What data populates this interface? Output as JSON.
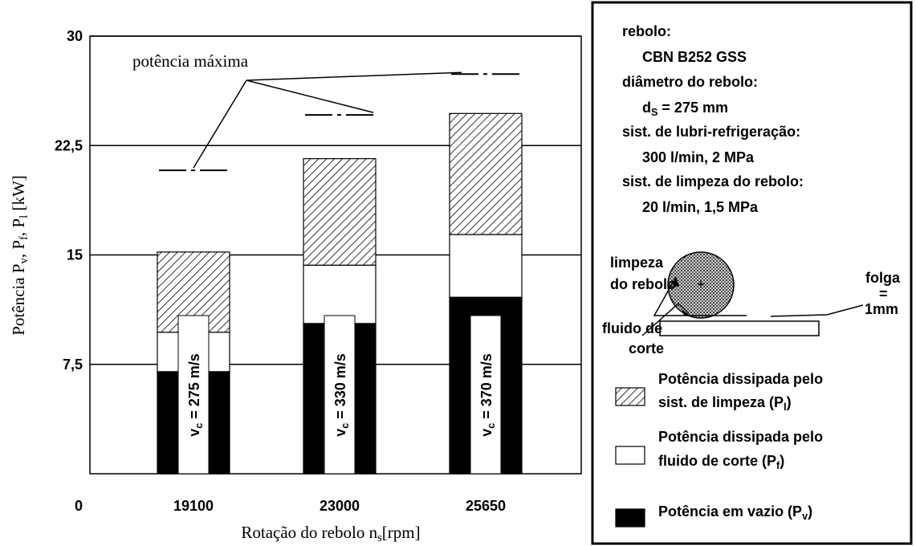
{
  "chart_data": {
    "type": "stacked_bar",
    "x_label": [
      "Rotação do rebolo n",
      {
        "sub": "s"
      },
      "[rpm]"
    ],
    "y_label": [
      "Potência P",
      {
        "sub": "v"
      },
      ", P",
      {
        "sub": "f"
      },
      ", P",
      {
        "sub": "l"
      },
      " [kW]"
    ],
    "categories": [
      "19100",
      "23000",
      "25650"
    ],
    "ylim": [
      0,
      30
    ],
    "yticks": [
      0,
      {
        "value": 7.5,
        "label": "7,5"
      },
      15,
      {
        "value": 22.5,
        "label": "22,5"
      },
      30
    ],
    "grid": true,
    "series": [
      {
        "name": [
          [
            "Potência em vazio (P",
            {
              "sub": "v"
            },
            ")"
          ]
        ],
        "color": "#000000",
        "fill": "solid",
        "values": [
          7.0,
          10.3,
          12.1
        ]
      },
      {
        "name": [
          [
            "Potência dissipada pelo"
          ],
          [
            "fluido de corte (P",
            {
              "sub": "f"
            },
            ")"
          ]
        ],
        "color": "#ffffff",
        "fill": "solid",
        "values": [
          2.7,
          4.0,
          4.3
        ]
      },
      {
        "name": [
          [
            "Potência dissipada pelo"
          ],
          [
            "sist. de limpeza (P",
            {
              "sub": "l"
            },
            ")"
          ]
        ],
        "color": "#000000",
        "fill": "hatch",
        "values": [
          5.5,
          7.3,
          8.3
        ]
      }
    ],
    "bar_labels": [
      [
        "v",
        {
          "sub": "c"
        },
        " = 275 m/s"
      ],
      [
        "v",
        {
          "sub": "c"
        },
        " = 330 m/s"
      ],
      [
        "v",
        {
          "sub": "c"
        },
        " = 370 m/s"
      ]
    ],
    "max_power": {
      "label": "potência máxima",
      "values": [
        20.8,
        24.6,
        27.4
      ]
    },
    "info": [
      [
        "rebolo:"
      ],
      [
        "CBN B252 GSS"
      ],
      [
        "diâmetro do rebolo:"
      ],
      [
        "d",
        {
          "sub": "S"
        },
        " = 275 mm"
      ],
      [
        "sist. de lubri-refrigeração:"
      ],
      [
        "300 l/min, 2 MPa"
      ],
      [
        "sist. de limpeza do rebolo:"
      ],
      [
        "20 l/min, 1,5 MPa"
      ]
    ],
    "diagram": {
      "cleaning": [
        "limpeza",
        "do rebolo"
      ],
      "fluid": [
        "fluido de",
        "corte"
      ],
      "gap": [
        "folga",
        "=",
        "1mm"
      ]
    }
  }
}
